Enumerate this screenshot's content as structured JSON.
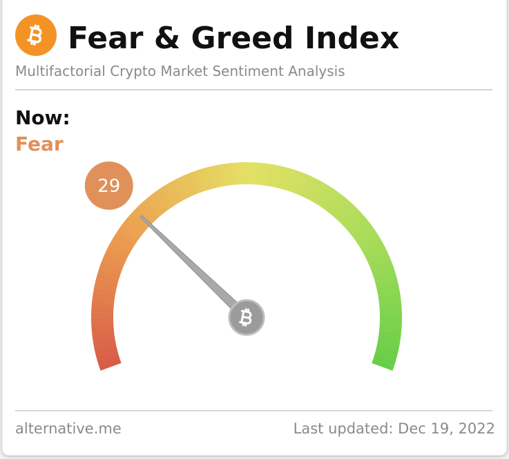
{
  "chart_data": {
    "type": "gauge",
    "title": "Fear & Greed Index",
    "subtitle": "Multifactorial Crypto Market Sentiment Analysis",
    "now_label": "Now:",
    "classification": "Fear",
    "value": 29,
    "range": [
      0,
      100
    ],
    "color": "#e0915a",
    "source": "alternative.me",
    "updated": "Last updated: Dec 19, 2022"
  }
}
